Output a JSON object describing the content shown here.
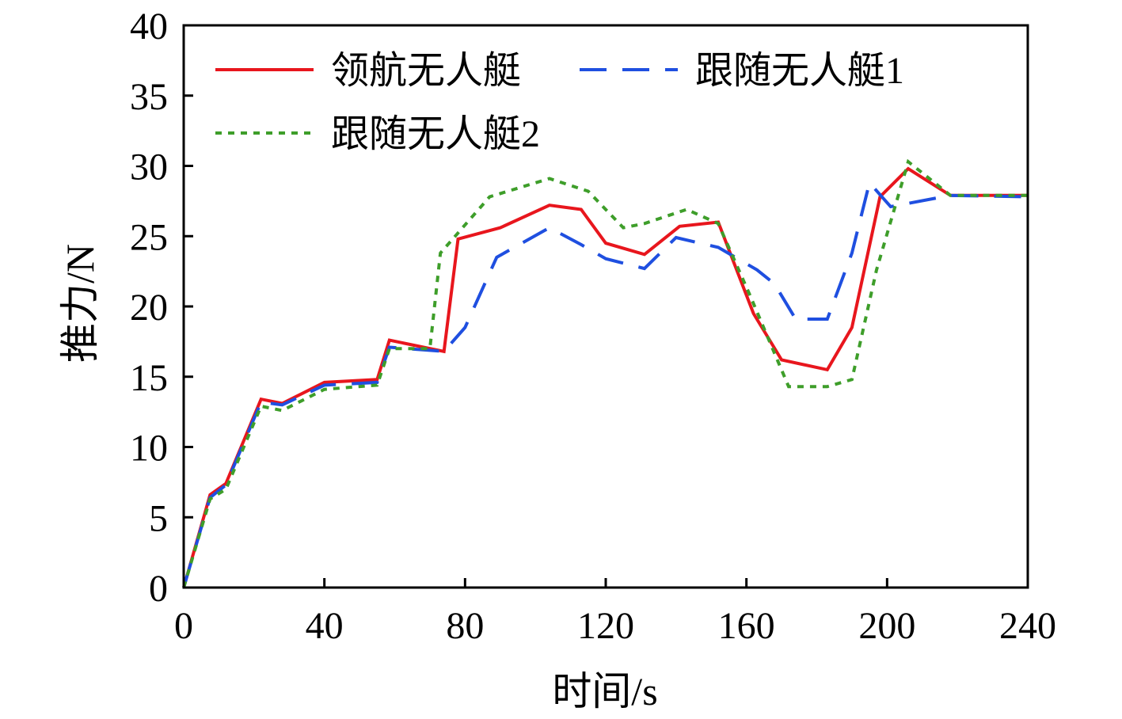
{
  "chart_data": {
    "type": "line",
    "xlabel": "时间/s",
    "ylabel": "推力/N",
    "xlim": [
      0,
      240
    ],
    "ylim": [
      0,
      40
    ],
    "xticks": [
      0,
      40,
      80,
      120,
      160,
      200,
      240
    ],
    "yticks": [
      0,
      5,
      10,
      15,
      20,
      25,
      30,
      35,
      40
    ],
    "grid": false,
    "legend_position": "top-left",
    "series": [
      {
        "name": "领航无人艇",
        "color": "#e8161d",
        "style": "solid",
        "points": [
          [
            0,
            0
          ],
          [
            7.5,
            6.6
          ],
          [
            12,
            7.4
          ],
          [
            22,
            13.4
          ],
          [
            28,
            13.1
          ],
          [
            40,
            14.6
          ],
          [
            55,
            14.8
          ],
          [
            58.5,
            17.6
          ],
          [
            74,
            16.8
          ],
          [
            78,
            24.8
          ],
          [
            90,
            25.6
          ],
          [
            104,
            27.2
          ],
          [
            113,
            26.9
          ],
          [
            120,
            24.5
          ],
          [
            131,
            23.7
          ],
          [
            141,
            25.7
          ],
          [
            152,
            26.0
          ],
          [
            162,
            19.5
          ],
          [
            170,
            16.2
          ],
          [
            183,
            15.5
          ],
          [
            190,
            18.5
          ],
          [
            198,
            27.8
          ],
          [
            206,
            29.8
          ],
          [
            218,
            27.9
          ],
          [
            240,
            27.9
          ]
        ]
      },
      {
        "name": "跟随无人艇1",
        "color": "#1f4fe0",
        "style": "dashed",
        "points": [
          [
            0,
            0
          ],
          [
            7.5,
            6.4
          ],
          [
            12,
            7.3
          ],
          [
            22,
            13.2
          ],
          [
            28,
            13.0
          ],
          [
            40,
            14.4
          ],
          [
            55,
            14.6
          ],
          [
            58.5,
            17.1
          ],
          [
            74,
            16.8
          ],
          [
            80,
            18.5
          ],
          [
            89,
            23.5
          ],
          [
            104,
            25.6
          ],
          [
            113,
            24.4
          ],
          [
            120,
            23.4
          ],
          [
            131,
            22.7
          ],
          [
            140,
            24.9
          ],
          [
            152,
            24.2
          ],
          [
            163,
            22.6
          ],
          [
            168,
            21.6
          ],
          [
            174,
            19.1
          ],
          [
            183,
            19.1
          ],
          [
            190,
            23.8
          ],
          [
            195,
            28.8
          ],
          [
            201,
            27.1
          ],
          [
            218,
            27.9
          ],
          [
            240,
            27.8
          ]
        ]
      },
      {
        "name": "跟随无人艇2",
        "color": "#3e9e2a",
        "style": "dotted",
        "points": [
          [
            0,
            0
          ],
          [
            7.5,
            6.3
          ],
          [
            12,
            7.0
          ],
          [
            22,
            12.9
          ],
          [
            28,
            12.6
          ],
          [
            40,
            14.1
          ],
          [
            55,
            14.4
          ],
          [
            58.5,
            17.0
          ],
          [
            70,
            17.0
          ],
          [
            73,
            23.8
          ],
          [
            87,
            27.8
          ],
          [
            104,
            29.1
          ],
          [
            115,
            28.2
          ],
          [
            125,
            25.6
          ],
          [
            131,
            25.9
          ],
          [
            143,
            26.9
          ],
          [
            152,
            25.9
          ],
          [
            161,
            20.8
          ],
          [
            172,
            14.3
          ],
          [
            183,
            14.3
          ],
          [
            190,
            14.8
          ],
          [
            197,
            22.6
          ],
          [
            206,
            30.3
          ],
          [
            218,
            27.9
          ],
          [
            240,
            27.9
          ]
        ]
      }
    ]
  }
}
